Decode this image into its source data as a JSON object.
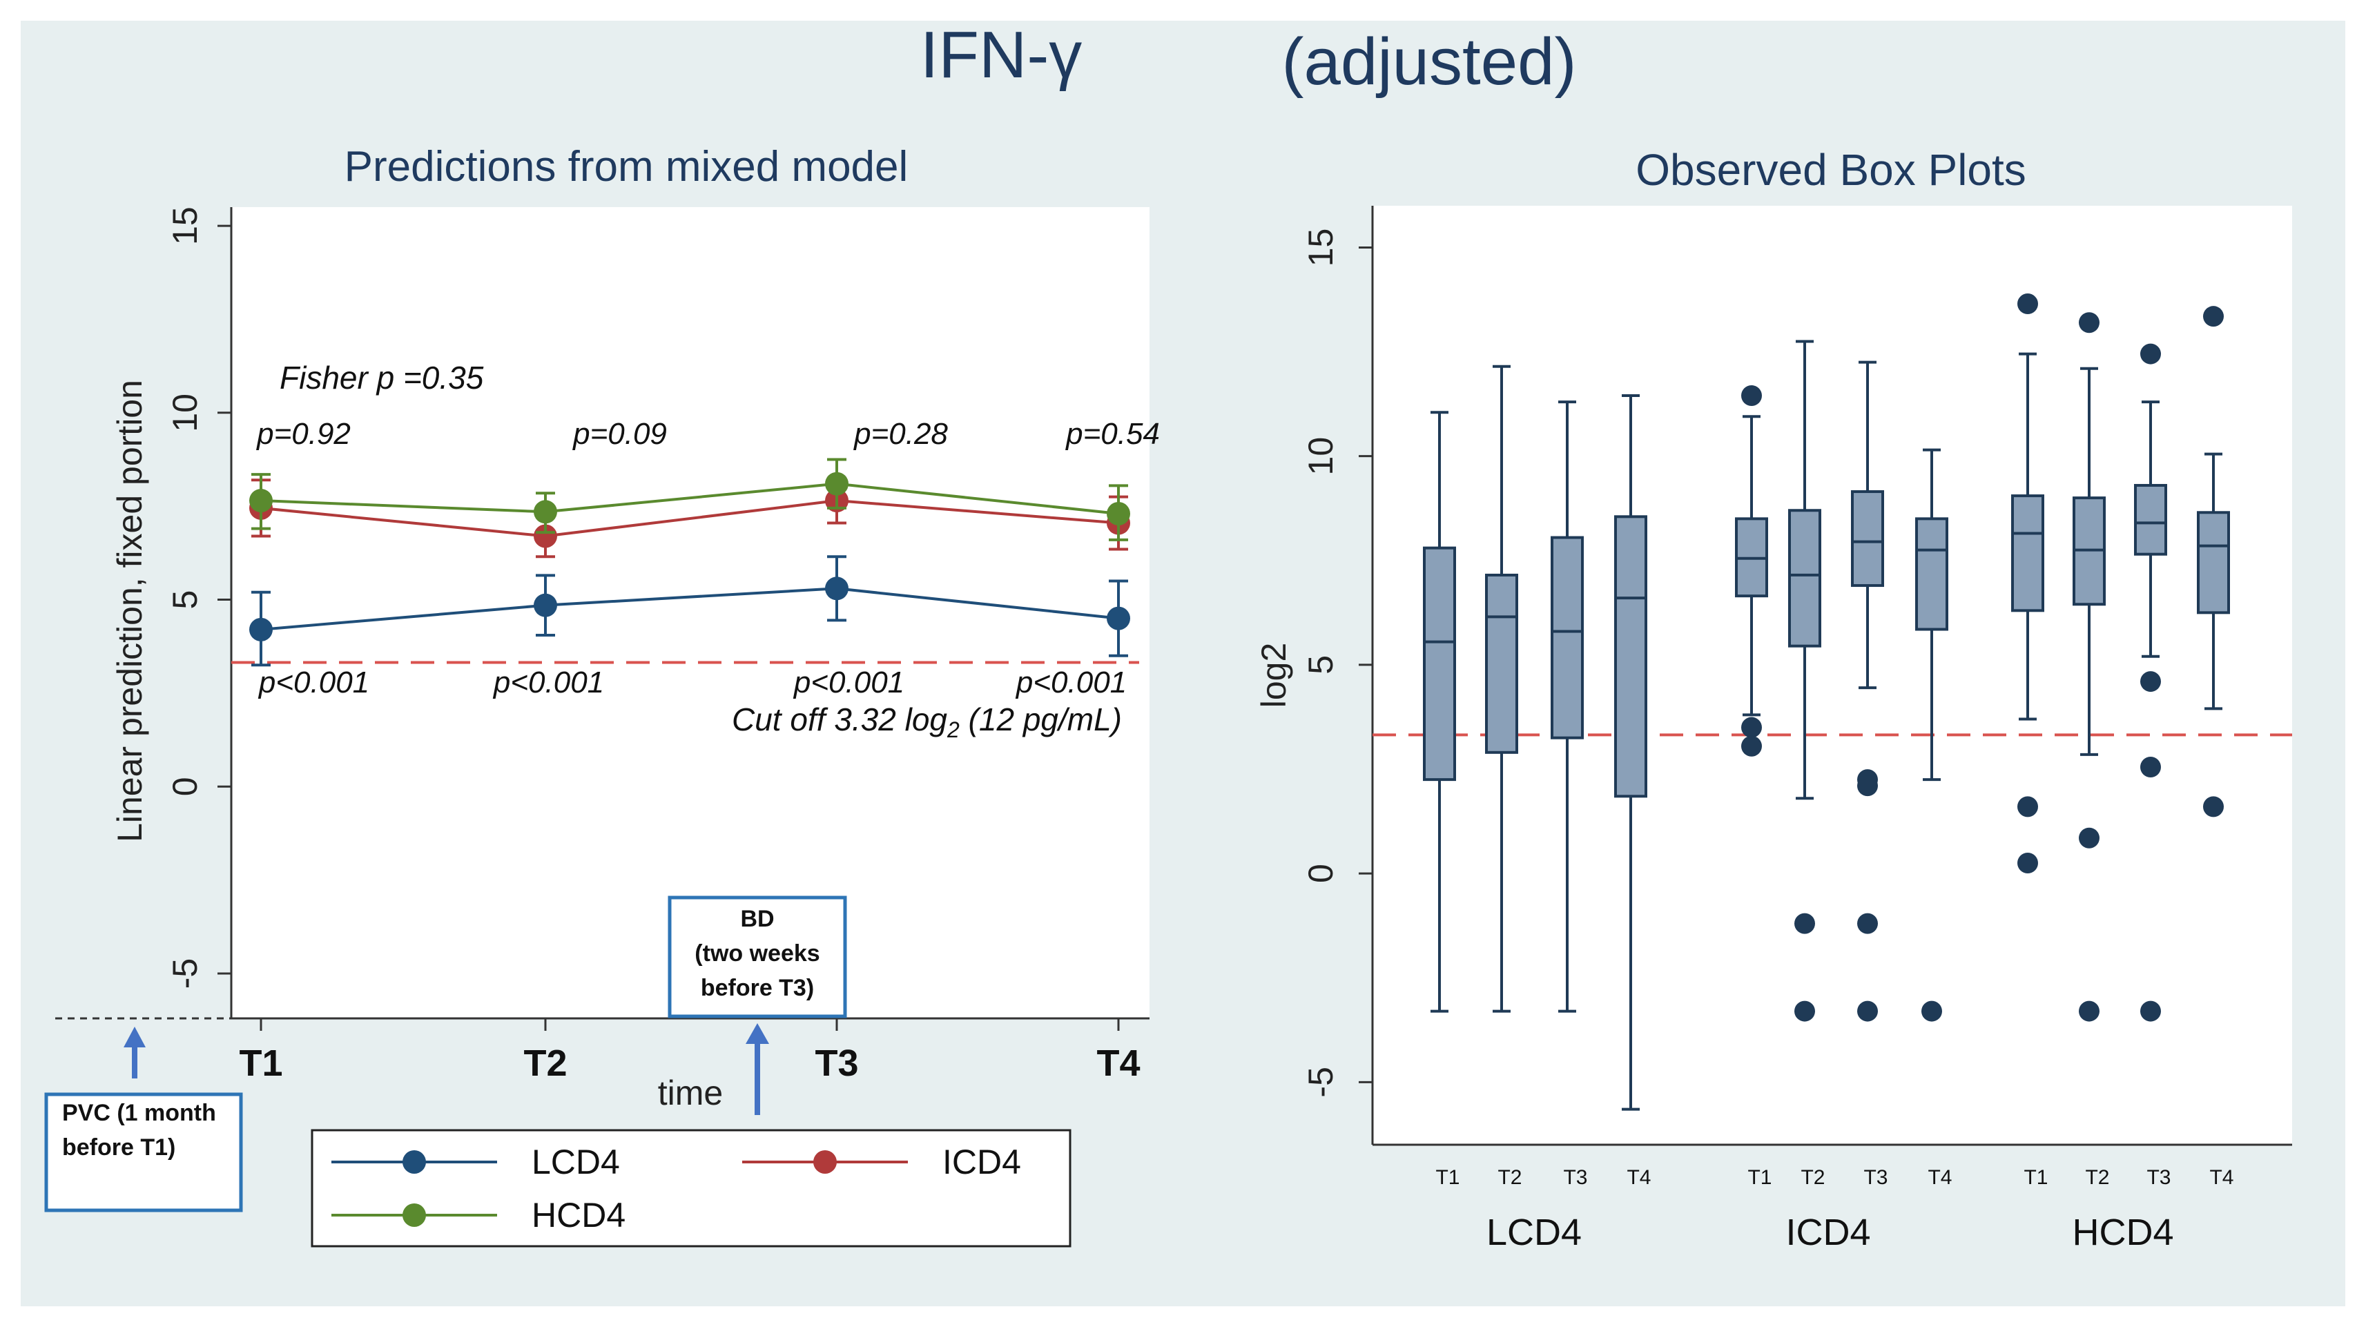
{
  "figure": {
    "title": "IFN-γ",
    "title_suffix": "(adjusted)",
    "colors": {
      "outer_bg": "#e7eff0",
      "plot_bg": "#ffffff",
      "cutoff": "#d9534f",
      "box_fill": "#8aa0b8",
      "box_stroke": "#1f3a56",
      "callout_border": "#2e75b6",
      "arrow": "#4472c4"
    }
  },
  "chart_data": [
    {
      "type": "line",
      "title": "Predictions from mixed model",
      "ylabel": "Linear prediction, fixed portion",
      "xlabel": "time",
      "categories": [
        "T1",
        "T2",
        "T3",
        "T4"
      ],
      "ylim": [
        -6.2,
        15.5
      ],
      "yticks": [
        "-5",
        "0",
        "5",
        "10",
        "15"
      ],
      "series": [
        {
          "name": "LCD4",
          "color": "#1f4e79",
          "values": [
            4.2,
            4.85,
            5.3,
            4.5
          ],
          "ci_low": [
            3.25,
            4.05,
            4.45,
            3.5
          ],
          "ci_high": [
            5.2,
            5.65,
            6.15,
            5.5
          ]
        },
        {
          "name": "ICD4",
          "color": "#b03a3a",
          "values": [
            7.45,
            6.7,
            7.65,
            7.05
          ],
          "ci_low": [
            6.7,
            6.15,
            7.05,
            6.35
          ],
          "ci_high": [
            8.2,
            7.2,
            8.25,
            7.75
          ]
        },
        {
          "name": "HCD4",
          "color": "#5a8a2e",
          "values": [
            7.65,
            7.35,
            8.1,
            7.3
          ],
          "ci_low": [
            6.9,
            6.8,
            7.45,
            6.6
          ],
          "ci_high": [
            8.35,
            7.85,
            8.75,
            8.05
          ]
        }
      ],
      "cutoff": 3.32,
      "cutoff_label": "Cut off 3.32 log",
      "cutoff_label_sub": "2",
      "cutoff_label_tail": " (12 pg/mL)",
      "fisher_label": "Fisher p =0.35",
      "top_pvalues": [
        "p=0.92",
        "p=0.09",
        "p=0.28",
        "p=0.54"
      ],
      "bottom_pvalues": [
        "p<0.001",
        "p<0.001",
        "p<0.001",
        "p<0.001"
      ],
      "legend": [
        "LCD4",
        "ICD4",
        "HCD4"
      ]
    },
    {
      "type": "box",
      "title": "Observed Box Plots",
      "ylabel": "log2",
      "ylim": [
        -6.5,
        16
      ],
      "yticks": [
        "-5",
        "0",
        "5",
        "10",
        "15"
      ],
      "cutoff": 3.32,
      "groups": [
        {
          "name": "LCD4",
          "boxes": [
            {
              "label": "T1",
              "min": -3.3,
              "q1": 2.25,
              "median": 5.55,
              "q3": 7.8,
              "max": 11.05,
              "outliers": []
            },
            {
              "label": "T2",
              "min": -3.3,
              "q1": 2.9,
              "median": 6.15,
              "q3": 7.15,
              "max": 12.15,
              "outliers": []
            },
            {
              "label": "T3",
              "min": -3.3,
              "q1": 3.25,
              "median": 5.8,
              "q3": 8.05,
              "max": 11.3,
              "outliers": []
            },
            {
              "label": "T4",
              "min": -5.65,
              "q1": 1.85,
              "median": 6.6,
              "q3": 8.55,
              "max": 11.45,
              "outliers": []
            }
          ]
        },
        {
          "name": "ICD4",
          "boxes": [
            {
              "label": "T1",
              "min": 3.8,
              "q1": 6.65,
              "median": 7.55,
              "q3": 8.5,
              "max": 10.95,
              "outliers": [
                11.45,
                3.5,
                3.05
              ]
            },
            {
              "label": "T2",
              "min": 1.8,
              "q1": 5.45,
              "median": 7.15,
              "q3": 8.7,
              "max": 12.75,
              "outliers": [
                -1.2,
                -3.3
              ]
            },
            {
              "label": "T3",
              "min": 4.45,
              "q1": 6.9,
              "median": 7.95,
              "q3": 9.15,
              "max": 12.25,
              "outliers": [
                2.25,
                2.1,
                -1.2,
                -3.3
              ]
            },
            {
              "label": "T4",
              "min": 2.25,
              "q1": 5.85,
              "median": 7.75,
              "q3": 8.5,
              "max": 10.15,
              "outliers": [
                -3.3
              ]
            }
          ]
        },
        {
          "name": "HCD4",
          "boxes": [
            {
              "label": "T1",
              "min": 3.7,
              "q1": 6.3,
              "median": 8.15,
              "q3": 9.05,
              "max": 12.45,
              "outliers": [
                13.65,
                1.6,
                0.25
              ]
            },
            {
              "label": "T2",
              "min": 2.85,
              "q1": 6.45,
              "median": 7.75,
              "q3": 9.0,
              "max": 12.1,
              "outliers": [
                13.2,
                0.85,
                -3.3
              ]
            },
            {
              "label": "T3",
              "min": 5.2,
              "q1": 7.65,
              "median": 8.4,
              "q3": 9.3,
              "max": 11.3,
              "outliers": [
                12.45,
                4.6,
                2.55,
                -3.3
              ]
            },
            {
              "label": "T4",
              "min": 3.95,
              "q1": 6.25,
              "median": 7.85,
              "q3": 8.65,
              "max": 10.05,
              "outliers": [
                13.35,
                1.6
              ]
            }
          ]
        }
      ]
    }
  ],
  "annotations": {
    "bd": [
      "BD",
      "(two weeks",
      "before T3)"
    ],
    "pvc": [
      "PVC (1 month",
      "before T1)"
    ]
  }
}
